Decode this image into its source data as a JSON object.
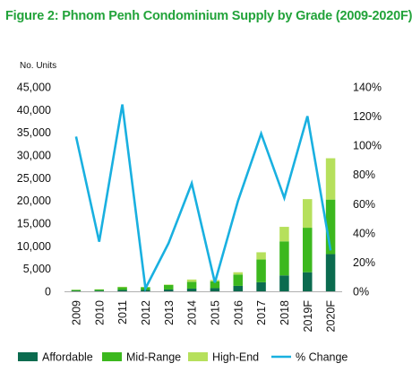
{
  "figure_title": "Figure 2: Phnom Penh Condominium Supply by Grade (2009-2020F)",
  "colors": {
    "title": "#22a33a",
    "affordable": "#0b6b4f",
    "mid_range": "#3cb81e",
    "high_end": "#b6e05c",
    "pct_change": "#19b0e0"
  },
  "chart_data": {
    "type": "bar",
    "stacked": true,
    "title": "Figure 2: Phnom Penh Condominium Supply by Grade (2009-2020F)",
    "ylabel": "No. Units",
    "ylim": [
      0,
      45000
    ],
    "y_ticks": [
      0,
      5000,
      10000,
      15000,
      20000,
      25000,
      30000,
      35000,
      40000,
      45000
    ],
    "y_tick_labels": [
      "0",
      "5,000",
      "10,000",
      "15,000",
      "20,000",
      "25,000",
      "30,000",
      "35,000",
      "40,000",
      "45,000"
    ],
    "y2lim": [
      0,
      140
    ],
    "y2_ticks": [
      0,
      20,
      40,
      60,
      80,
      100,
      120,
      140
    ],
    "y2_tick_labels": [
      "0%",
      "20%",
      "40%",
      "60%",
      "80%",
      "100%",
      "120%",
      "140%"
    ],
    "categories": [
      "2009",
      "2010",
      "2011",
      "2012",
      "2013",
      "2014",
      "2015",
      "2016",
      "2017",
      "2018",
      "2019F",
      "2020F"
    ],
    "series": [
      {
        "name": "Affordable",
        "type": "bar",
        "color": "#0b6b4f",
        "values": [
          100,
          150,
          300,
          300,
          400,
          600,
          700,
          1200,
          2000,
          3500,
          4200,
          8200
        ]
      },
      {
        "name": "Mid-Range",
        "type": "bar",
        "color": "#3cb81e",
        "values": [
          200,
          250,
          600,
          600,
          1000,
          1500,
          1500,
          2500,
          5000,
          7500,
          9800,
          12000
        ]
      },
      {
        "name": "High-End",
        "type": "bar",
        "color": "#b6e05c",
        "values": [
          50,
          50,
          100,
          50,
          100,
          500,
          300,
          500,
          1600,
          3200,
          6300,
          9100
        ]
      },
      {
        "name": "% Change",
        "type": "line",
        "axis": "right",
        "color": "#19b0e0",
        "values": [
          106,
          34,
          128,
          2,
          33,
          74,
          6,
          62,
          108,
          64,
          120,
          28
        ]
      }
    ],
    "grid": false,
    "legend": "bottom"
  }
}
